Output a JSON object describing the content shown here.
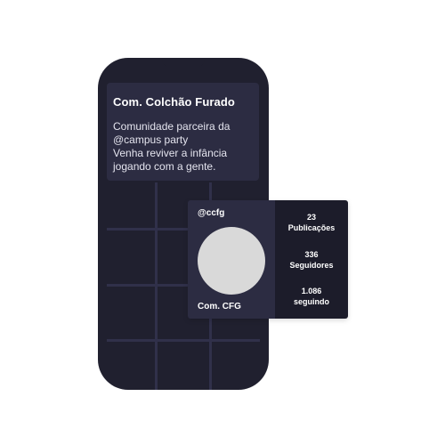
{
  "profile_card": {
    "title": "Com. Colchão Furado",
    "bio": "Comunidade parceira da\n@campus party\nVenha reviver a infância\njogando com a gente."
  },
  "popup": {
    "handle": "@ccfg",
    "display_name": "Com. CFG",
    "stats": [
      {
        "value": "23",
        "label": "Publicações"
      },
      {
        "value": "336",
        "label": "Seguidores"
      },
      {
        "value": "1.086",
        "label": "seguindo"
      }
    ]
  },
  "colors": {
    "phone_body": "#20202f",
    "card_bg": "#2c2c42",
    "popup_bg": "#1c1c2a",
    "avatar_placeholder": "#d9d9d9"
  }
}
